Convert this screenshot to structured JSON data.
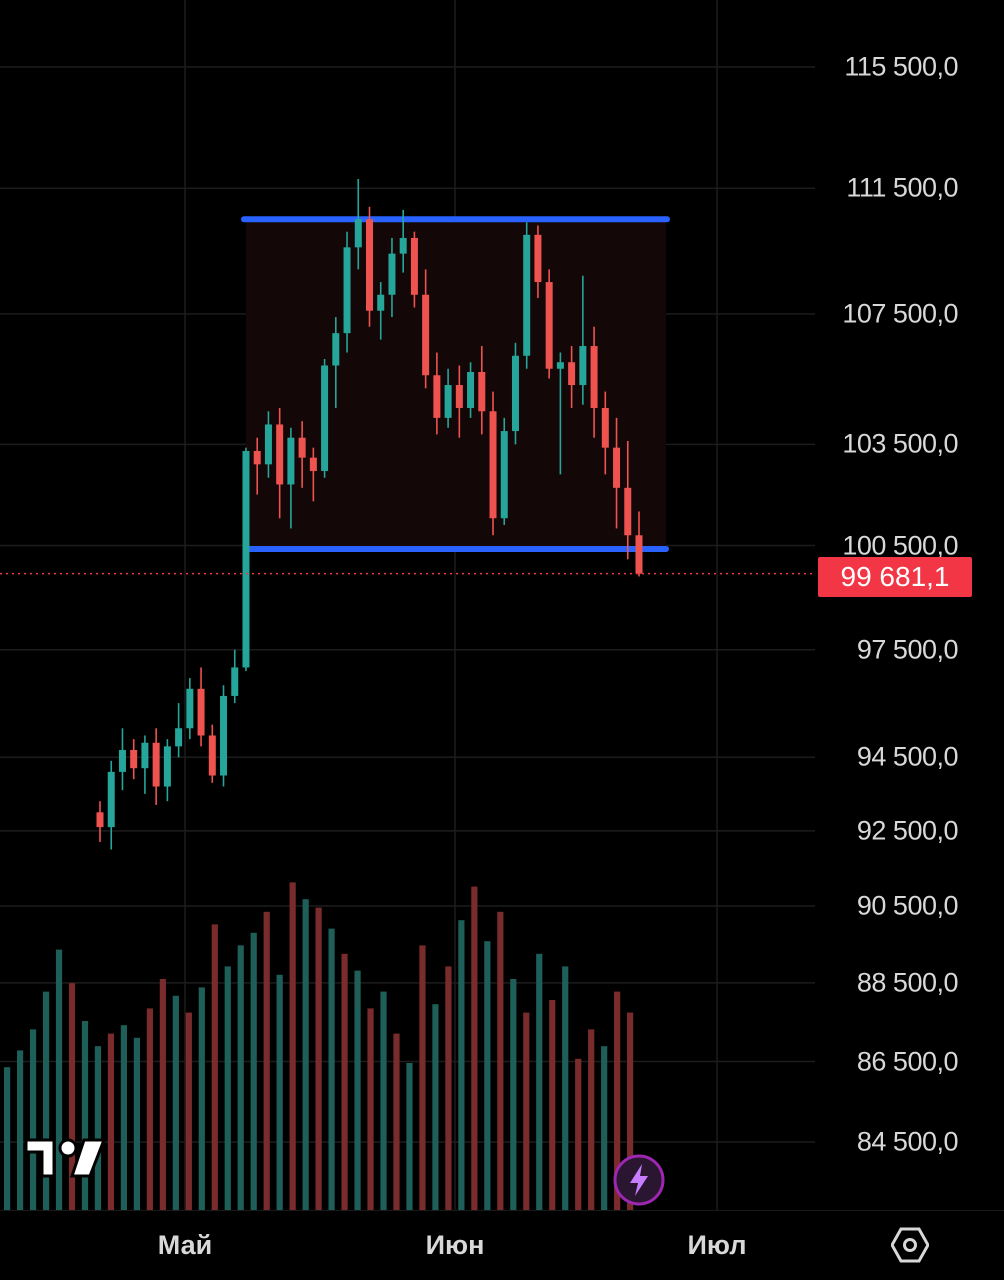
{
  "chart_data": {
    "type": "candlestick",
    "y_axis": {
      "scale": "log",
      "ticks": [
        "115 500,0",
        "111 500,0",
        "107 500,0",
        "103 500,0",
        "100 500,0",
        "97 500,0",
        "94 500,0",
        "92 500,0",
        "90 500,0",
        "88 500,0",
        "86 500,0",
        "84 500,0"
      ],
      "tick_values": [
        115500,
        111500,
        107500,
        103500,
        100500,
        97500,
        94500,
        92500,
        90500,
        88500,
        86500,
        84500
      ]
    },
    "x_axis": {
      "ticks": [
        "Май",
        "Июн",
        "Июл"
      ]
    },
    "last_price": "99 681,1",
    "last_price_value": 99681.1,
    "range_box": {
      "top": 110500,
      "bottom": 100400
    },
    "candles": [
      [
        93000,
        93300,
        92200,
        92600
      ],
      [
        92600,
        94400,
        92000,
        94100
      ],
      [
        94100,
        95300,
        93600,
        94700
      ],
      [
        94700,
        95000,
        93900,
        94200
      ],
      [
        94200,
        95100,
        93500,
        94900
      ],
      [
        94900,
        95300,
        93200,
        93700
      ],
      [
        93700,
        95000,
        93300,
        94800
      ],
      [
        94800,
        96000,
        94500,
        95300
      ],
      [
        95300,
        96700,
        95000,
        96400
      ],
      [
        96400,
        97000,
        94800,
        95100
      ],
      [
        95100,
        95400,
        93800,
        94000
      ],
      [
        94000,
        96500,
        93700,
        96200
      ],
      [
        96200,
        97500,
        96000,
        97000
      ],
      [
        97000,
        103400,
        96900,
        103300
      ],
      [
        103300,
        103700,
        102000,
        102900
      ],
      [
        102900,
        104500,
        102500,
        104100
      ],
      [
        104100,
        104600,
        101300,
        102300
      ],
      [
        102300,
        104000,
        101000,
        103700
      ],
      [
        103700,
        104200,
        102200,
        103100
      ],
      [
        103100,
        103400,
        101800,
        102700
      ],
      [
        102700,
        106100,
        102500,
        105900
      ],
      [
        105900,
        107400,
        104600,
        106900
      ],
      [
        106900,
        110100,
        106300,
        109600
      ],
      [
        109600,
        111800,
        108900,
        110500
      ],
      [
        110500,
        110900,
        107100,
        107600
      ],
      [
        107600,
        108500,
        106700,
        108100
      ],
      [
        108100,
        109900,
        107400,
        109400
      ],
      [
        109400,
        110800,
        108800,
        109900
      ],
      [
        109900,
        110100,
        107700,
        108100
      ],
      [
        108100,
        108900,
        105200,
        105600
      ],
      [
        105600,
        106300,
        103800,
        104300
      ],
      [
        104300,
        105800,
        104000,
        105300
      ],
      [
        105300,
        105900,
        103700,
        104600
      ],
      [
        104600,
        106000,
        104300,
        105700
      ],
      [
        105700,
        106500,
        103800,
        104500
      ],
      [
        104500,
        105100,
        100800,
        101300
      ],
      [
        101300,
        104300,
        101100,
        103900
      ],
      [
        103900,
        106600,
        103500,
        106200
      ],
      [
        106200,
        110400,
        105800,
        110000
      ],
      [
        110000,
        110300,
        108000,
        108500
      ],
      [
        108500,
        108900,
        105500,
        105800
      ],
      [
        105800,
        106300,
        102600,
        106000
      ],
      [
        106000,
        106500,
        104600,
        105300
      ],
      [
        105300,
        108700,
        104700,
        106500
      ],
      [
        106500,
        107100,
        103700,
        104600
      ],
      [
        104600,
        105100,
        102600,
        103400
      ],
      [
        103400,
        104300,
        101000,
        102200
      ],
      [
        102200,
        103600,
        100100,
        100800
      ],
      [
        100800,
        101500,
        99600,
        99681
      ]
    ],
    "volumes": [
      [
        0.34,
        1
      ],
      [
        0.38,
        1
      ],
      [
        0.43,
        1
      ],
      [
        0.52,
        1
      ],
      [
        0.62,
        1
      ],
      [
        0.54,
        0
      ],
      [
        0.45,
        1
      ],
      [
        0.39,
        1
      ],
      [
        0.42,
        0
      ],
      [
        0.44,
        1
      ],
      [
        0.41,
        1
      ],
      [
        0.48,
        0
      ],
      [
        0.55,
        0
      ],
      [
        0.51,
        1
      ],
      [
        0.47,
        0
      ],
      [
        0.53,
        1
      ],
      [
        0.68,
        0
      ],
      [
        0.58,
        1
      ],
      [
        0.63,
        1
      ],
      [
        0.66,
        1
      ],
      [
        0.71,
        0
      ],
      [
        0.56,
        1
      ],
      [
        0.78,
        0
      ],
      [
        0.74,
        1
      ],
      [
        0.72,
        0
      ],
      [
        0.67,
        1
      ],
      [
        0.61,
        0
      ],
      [
        0.57,
        1
      ],
      [
        0.48,
        0
      ],
      [
        0.52,
        1
      ],
      [
        0.42,
        0
      ],
      [
        0.35,
        1
      ],
      [
        0.63,
        0
      ],
      [
        0.49,
        1
      ],
      [
        0.58,
        0
      ],
      [
        0.69,
        1
      ],
      [
        0.77,
        0
      ],
      [
        0.64,
        1
      ],
      [
        0.71,
        0
      ],
      [
        0.55,
        1
      ],
      [
        0.47,
        0
      ],
      [
        0.61,
        1
      ],
      [
        0.5,
        0
      ],
      [
        0.58,
        1
      ],
      [
        0.36,
        0
      ],
      [
        0.43,
        0
      ],
      [
        0.39,
        1
      ],
      [
        0.52,
        0
      ],
      [
        0.47,
        0
      ]
    ]
  },
  "colors": {
    "up": "#26a69a",
    "down": "#ef5350",
    "range_line": "#2962ff",
    "last_price_bg": "#f23645",
    "last_price_line": "#f23645"
  },
  "icons": {
    "settings": "settings-hexagon-icon",
    "logo": "tradingview-logo",
    "bolt": "lightning-icon"
  }
}
